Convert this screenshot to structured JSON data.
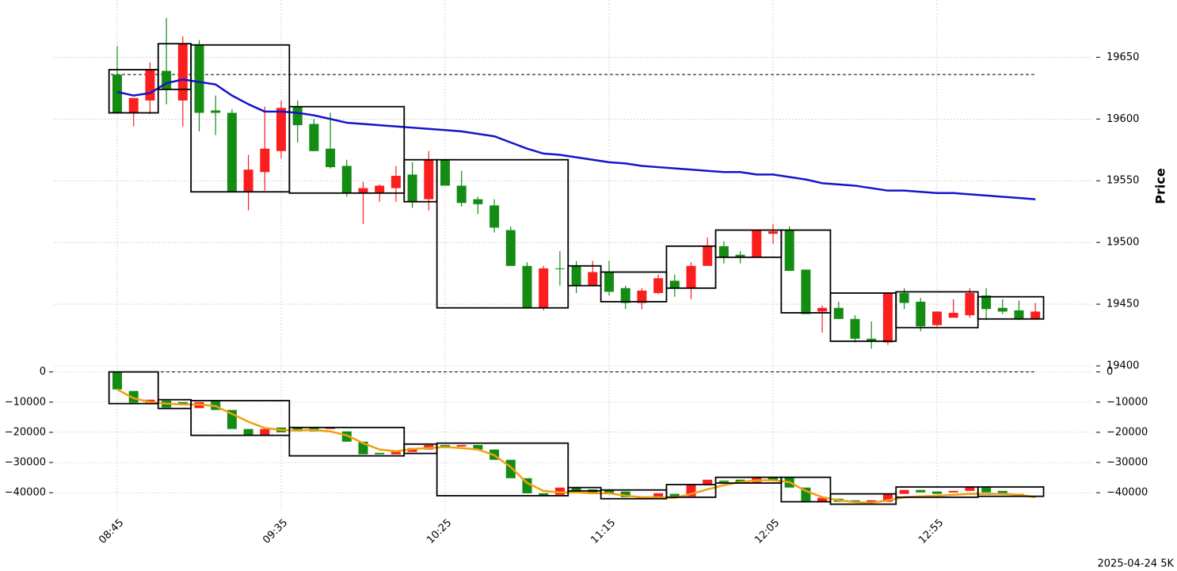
{
  "chart_data": [
    {
      "type": "candlestick",
      "ylabel": "Price",
      "open": [
        19636,
        19605,
        19615,
        19639,
        19615,
        19660,
        19607,
        19605,
        19541,
        19557,
        19574,
        19610,
        19596,
        19576,
        19562,
        19540,
        19540,
        19544,
        19555,
        19535,
        19567,
        19546,
        19535,
        19530,
        19510,
        19481,
        19447,
        19479,
        19481,
        19465,
        19476,
        19463,
        19451,
        19459,
        19469,
        19463,
        19481,
        19497,
        19490,
        19488,
        19507,
        19510,
        19478,
        19444,
        19447,
        19438,
        19422,
        19419,
        19459,
        19452,
        19433,
        19439,
        19441,
        19457,
        19447,
        19445,
        19438
      ],
      "high": [
        19659,
        19617,
        19646,
        19682,
        19667,
        19664,
        19619,
        19608,
        19571,
        19610,
        19615,
        19615,
        19600,
        19605,
        19567,
        19549,
        19547,
        19562,
        19565,
        19574,
        19567,
        19558,
        19537,
        19535,
        19513,
        19484,
        19481,
        19493,
        19485,
        19485,
        19485,
        19465,
        19463,
        19474,
        19474,
        19484,
        19504,
        19501,
        19493,
        19510,
        19515,
        19513,
        19478,
        19449,
        19452,
        19441,
        19436,
        19459,
        19463,
        19455,
        19444,
        19454,
        19463,
        19463,
        19454,
        19453,
        19451
      ],
      "low": [
        19605,
        19594,
        19604,
        19612,
        19594,
        19590,
        19587,
        19541,
        19526,
        19542,
        19568,
        19581,
        19574,
        19560,
        19537,
        19515,
        19533,
        19533,
        19528,
        19526,
        19546,
        19529,
        19523,
        19508,
        19481,
        19447,
        19445,
        19465,
        19459,
        19465,
        19457,
        19446,
        19446,
        19458,
        19456,
        19454,
        19481,
        19483,
        19483,
        19488,
        19499,
        19477,
        19442,
        19427,
        19438,
        19419,
        19414,
        19417,
        19446,
        19428,
        19432,
        19439,
        19439,
        19437,
        19442,
        19437,
        19438
      ],
      "close": [
        19605,
        19617,
        19640,
        19624,
        19661,
        19605,
        19605,
        19541,
        19559,
        19576,
        19609,
        19595,
        19574,
        19561,
        19540,
        19544,
        19546,
        19554,
        19533,
        19567,
        19546,
        19532,
        19531,
        19512,
        19481,
        19447,
        19479,
        19479,
        19465,
        19476,
        19460,
        19451,
        19461,
        19471,
        19463,
        19481,
        19497,
        19488,
        19488,
        19510,
        19509,
        19477,
        19442,
        19447,
        19438,
        19422,
        19420,
        19459,
        19451,
        19432,
        19444,
        19443,
        19459,
        19446,
        19444,
        19438,
        19444
      ],
      "up_color": "#fb1e1e",
      "down_color": "#148c14",
      "lines": [
        {
          "color": "#1414cc",
          "values": [
            19622,
            19619,
            19621,
            19629,
            19632,
            19630,
            19628,
            19619,
            19612,
            19606,
            19606,
            19605,
            19603,
            19600,
            19597,
            19596,
            19595,
            19594,
            19593,
            19592,
            19591,
            19590,
            19588,
            19586,
            19581,
            19576,
            19572,
            19571,
            19569,
            19567,
            19565,
            19564,
            19562,
            19561,
            19560,
            19559,
            19558,
            19557,
            19557,
            19555,
            19555,
            19553,
            19551,
            19548,
            19547,
            19546,
            19544,
            19542,
            19542,
            19541,
            19540,
            19540,
            19539,
            19538,
            19537,
            19536,
            19535
          ]
        }
      ],
      "hline": 19636,
      "boxes": [
        {
          "from": 0,
          "to": 2,
          "low": 19605,
          "high": 19640
        },
        {
          "from": 3,
          "to": 4,
          "low": 19624,
          "high": 19661
        },
        {
          "from": 5,
          "to": 10,
          "low": 19541,
          "high": 19660
        },
        {
          "from": 11,
          "to": 17,
          "low": 19540,
          "high": 19610
        },
        {
          "from": 18,
          "to": 19,
          "low": 19533,
          "high": 19567
        },
        {
          "from": 20,
          "to": 27,
          "low": 19447,
          "high": 19567
        },
        {
          "from": 28,
          "to": 29,
          "low": 19465,
          "high": 19481
        },
        {
          "from": 30,
          "to": 33,
          "low": 19452,
          "high": 19476
        },
        {
          "from": 34,
          "to": 36,
          "low": 19463,
          "high": 19497
        },
        {
          "from": 37,
          "to": 40,
          "low": 19488,
          "high": 19510
        },
        {
          "from": 41,
          "to": 43,
          "low": 19443,
          "high": 19510
        },
        {
          "from": 44,
          "to": 47,
          "low": 19420,
          "high": 19459
        },
        {
          "from": 48,
          "to": 52,
          "low": 19431,
          "high": 19460
        },
        {
          "from": 53,
          "to": 56,
          "low": 19438,
          "high": 19456
        }
      ],
      "ylim": [
        19400,
        19690
      ],
      "yticks": [
        19400,
        19450,
        19500,
        19550,
        19600,
        19650
      ],
      "grid": true
    },
    {
      "type": "candlestick",
      "xlabel": "2025-04-24 5K",
      "categories": [
        "08:45",
        null,
        null,
        null,
        null,
        null,
        null,
        null,
        null,
        null,
        "09:35",
        null,
        null,
        null,
        null,
        null,
        null,
        null,
        null,
        null,
        "10:25",
        null,
        null,
        null,
        null,
        null,
        null,
        null,
        null,
        null,
        "11:15",
        null,
        null,
        null,
        null,
        null,
        null,
        null,
        null,
        null,
        "12:05",
        null,
        null,
        null,
        null,
        null,
        null,
        null,
        null,
        null,
        "12:55",
        null,
        null,
        null,
        null,
        null,
        null
      ],
      "open": [
        0,
        -6300,
        -10200,
        -9500,
        -10000,
        -12000,
        -9700,
        -12600,
        -18900,
        -21000,
        -18400,
        -18400,
        -18400,
        -18900,
        -19700,
        -23100,
        -26800,
        -27300,
        -26500,
        -25700,
        -24200,
        -24700,
        -24200,
        -25700,
        -29100,
        -35200,
        -40200,
        -40700,
        -38300,
        -38900,
        -39100,
        -39600,
        -41500,
        -41700,
        -40400,
        -41200,
        -37500,
        -36000,
        -35700,
        -36500,
        -34900,
        -34900,
        -38300,
        -43000,
        -42000,
        -42500,
        -43300,
        -43000,
        -40400,
        -39100,
        -39600,
        -39900,
        -39400,
        -38300,
        -39400,
        -40400,
        -41000
      ],
      "close": [
        -5800,
        -10200,
        -9200,
        -11800,
        -11000,
        -10000,
        -12600,
        -18900,
        -21000,
        -18900,
        -20000,
        -19700,
        -19700,
        -18600,
        -23100,
        -27300,
        -27300,
        -26500,
        -25200,
        -24200,
        -25200,
        -24200,
        -25700,
        -29100,
        -35200,
        -40200,
        -41000,
        -38300,
        -39400,
        -40200,
        -40400,
        -41500,
        -42000,
        -40200,
        -41200,
        -37500,
        -35700,
        -36500,
        -36800,
        -34700,
        -35700,
        -38300,
        -42800,
        -41700,
        -43000,
        -43000,
        -42500,
        -40400,
        -39100,
        -39900,
        -40400,
        -39400,
        -38100,
        -39900,
        -40200,
        -41000,
        -41000
      ],
      "up_color": "#fb1e1e",
      "down_color": "#148c14",
      "lines": [
        {
          "color": "#f0a010",
          "values": [
            -5800,
            -8700,
            -10000,
            -10500,
            -10800,
            -10800,
            -11300,
            -13900,
            -16500,
            -18600,
            -19200,
            -19400,
            -19200,
            -19700,
            -21000,
            -23600,
            -25700,
            -26300,
            -25500,
            -25200,
            -24900,
            -25200,
            -25700,
            -27600,
            -31500,
            -36800,
            -39400,
            -39900,
            -39900,
            -40200,
            -40200,
            -41000,
            -41500,
            -41500,
            -41700,
            -40400,
            -38900,
            -37500,
            -36500,
            -35900,
            -35900,
            -36500,
            -39400,
            -41500,
            -42500,
            -43100,
            -43300,
            -42500,
            -41500,
            -41200,
            -41000,
            -40700,
            -40400,
            -40400,
            -40400,
            -40700,
            -41500
          ]
        }
      ],
      "hline": 0,
      "boxes": [
        {
          "from": 0,
          "to": 2,
          "low": -10500,
          "high": 0
        },
        {
          "from": 3,
          "to": 4,
          "low": -12100,
          "high": -9200
        },
        {
          "from": 5,
          "to": 10,
          "low": -21000,
          "high": -9500
        },
        {
          "from": 11,
          "to": 17,
          "low": -27800,
          "high": -18400
        },
        {
          "from": 18,
          "to": 19,
          "low": -27000,
          "high": -23900
        },
        {
          "from": 20,
          "to": 27,
          "low": -41000,
          "high": -23600
        },
        {
          "from": 28,
          "to": 29,
          "low": -39400,
          "high": -38300
        },
        {
          "from": 30,
          "to": 33,
          "low": -42000,
          "high": -39100
        },
        {
          "from": 34,
          "to": 36,
          "low": -41500,
          "high": -37300
        },
        {
          "from": 37,
          "to": 40,
          "low": -36800,
          "high": -34900
        },
        {
          "from": 41,
          "to": 43,
          "low": -43000,
          "high": -34900
        },
        {
          "from": 44,
          "to": 47,
          "low": -43800,
          "high": -40400
        },
        {
          "from": 48,
          "to": 52,
          "low": -41500,
          "high": -38100
        },
        {
          "from": 53,
          "to": 56,
          "low": -41200,
          "high": -38100
        }
      ],
      "ylim": [
        -46000,
        2000
      ],
      "yticks": [
        {
          "value": 0,
          "label": "0"
        },
        {
          "value": -10000,
          "label": "−10000"
        },
        {
          "value": -20000,
          "label": "−20000"
        },
        {
          "value": -30000,
          "label": "−30000"
        },
        {
          "value": -40000,
          "label": "−40000"
        }
      ],
      "grid": true
    }
  ]
}
